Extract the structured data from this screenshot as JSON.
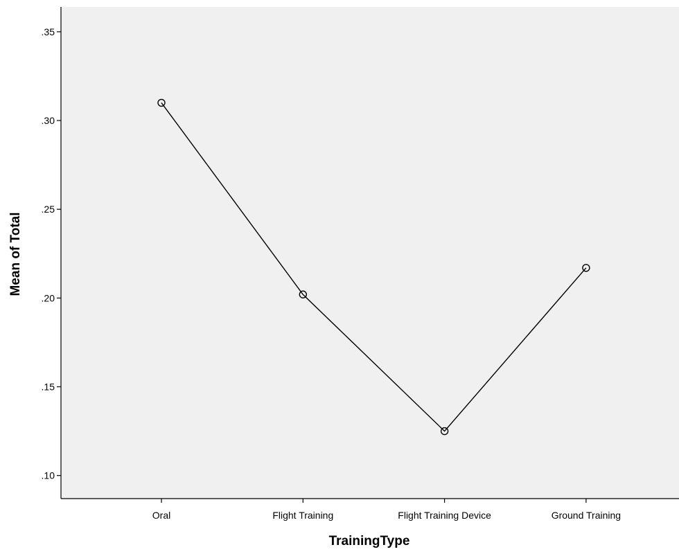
{
  "chart_data": {
    "type": "line",
    "title": "",
    "xlabel": "TrainingType",
    "ylabel": "Mean of Total",
    "categories": [
      "Oral",
      "Flight Training",
      "Flight Training Device",
      "Ground Training"
    ],
    "series": [
      {
        "values": [
          0.31,
          0.202,
          0.125,
          0.217
        ]
      }
    ],
    "ylim": [
      0.087,
      0.364
    ],
    "yticks": [
      0.1,
      0.15,
      0.2,
      0.25,
      0.3,
      0.35
    ],
    "ytick_labels": [
      ".10",
      ".15",
      ".20",
      ".25",
      ".30",
      ".35"
    ],
    "grid": false,
    "marker": "open-circle",
    "colors": {
      "plot_background": "#f0f0f0",
      "line": "#000000",
      "axis": "#000000"
    }
  }
}
